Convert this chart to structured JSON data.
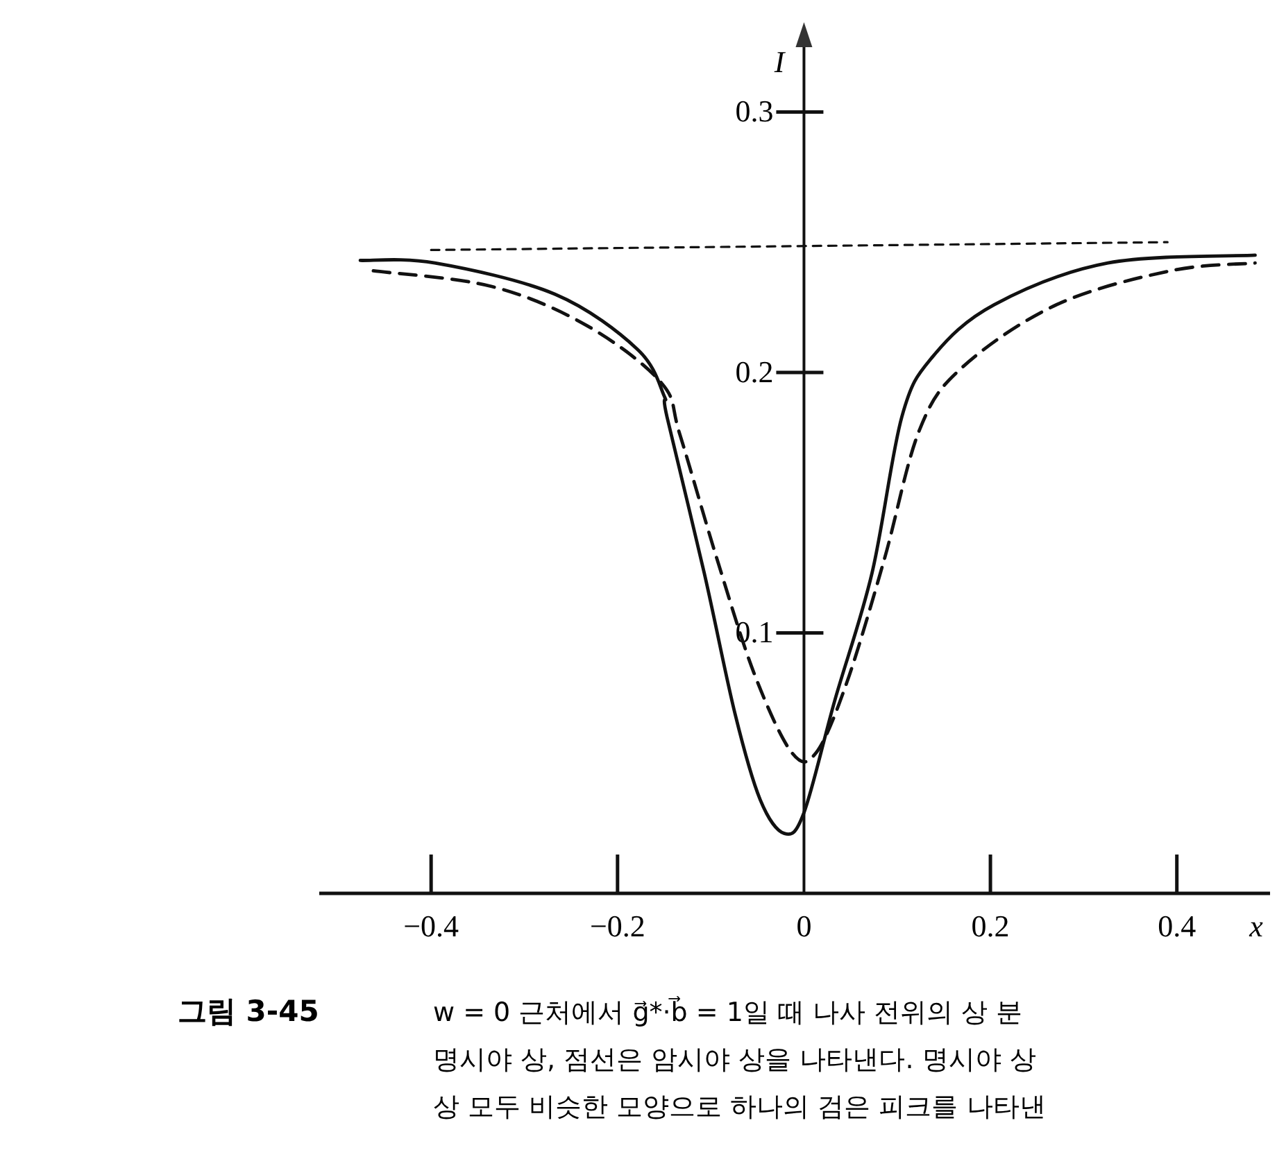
{
  "chart_data": {
    "type": "line",
    "title": "그림 3-45",
    "xlabel": "x",
    "ylabel": "I",
    "xlim": [
      -0.52,
      0.5
    ],
    "ylim": [
      0,
      0.327
    ],
    "xticks": [
      {
        "value": -0.4,
        "label": "−0.4"
      },
      {
        "value": -0.2,
        "label": "−0.2"
      },
      0,
      0.2,
      0.4
    ],
    "yticks": [
      0.1,
      0.2,
      0.3
    ],
    "series": [
      {
        "color": "#111111",
        "line_style": "solid",
        "x": [
          -0.476,
          -0.396,
          -0.267,
          -0.179,
          -0.15,
          -0.147,
          -0.107,
          -0.074,
          -0.047,
          -0.021,
          0,
          0.033,
          0.073,
          0.105,
          0.138,
          0.204,
          0.326,
          0.484
        ],
        "values": [
          0.243,
          0.242,
          0.23,
          0.209,
          0.191,
          0.183,
          0.123,
          0.069,
          0.036,
          0.023,
          0.031,
          0.074,
          0.123,
          0.183,
          0.206,
          0.226,
          0.242,
          0.245
        ]
      },
      {
        "color": "#111111",
        "line_style": "dashed",
        "x": [
          -0.462,
          -0.335,
          -0.233,
          -0.153,
          -0.133,
          -0.093,
          -0.053,
          -0.013,
          0.013,
          0.046,
          0.086,
          0.124,
          0.17,
          0.271,
          0.393,
          0.484
        ],
        "values": [
          0.239,
          0.233,
          0.218,
          0.196,
          0.176,
          0.128,
          0.084,
          0.054,
          0.054,
          0.081,
          0.128,
          0.178,
          0.202,
          0.226,
          0.239,
          0.242
        ]
      },
      {
        "color": "#111111",
        "line_style": "dotted",
        "x": [
          -0.4,
          0.39
        ],
        "values": [
          0.247,
          0.25
        ]
      }
    ],
    "annotations": [
      "w = 0 근처에서 g⃗*·b⃗ = 1일 때 나사 전위의 상 분",
      "명시야 상, 점선은 암시야 상을 나타낸다. 명시야 상",
      "상 모두 비슷한 모양으로 하나의 검은 피크를 나타낸"
    ]
  }
}
